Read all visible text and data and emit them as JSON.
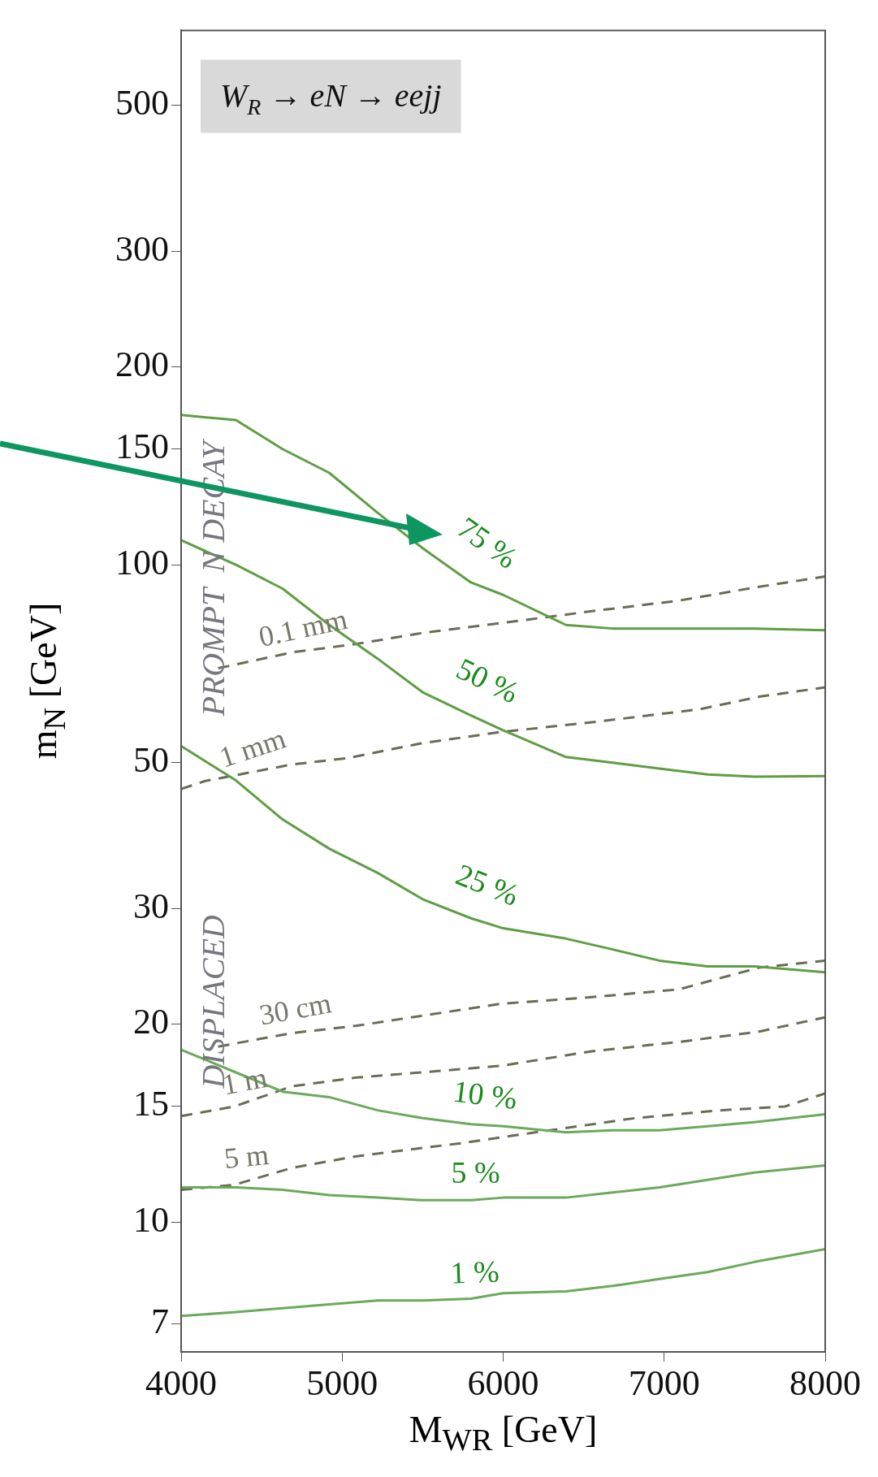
{
  "chart_data": {
    "type": "line",
    "xlabel": "M$_{WR}$  [GeV]",
    "ylabel": "m$_{N}$  [GeV]",
    "log": "y",
    "xlim": [
      4000,
      8000
    ],
    "xticks": [
      4000,
      5000,
      6000,
      7000,
      8000
    ],
    "ylim": [
      6.35,
      650
    ],
    "yticks": [
      7,
      10,
      15,
      20,
      30,
      50,
      100,
      150,
      200,
      300,
      500
    ],
    "grid": false,
    "legend": false,
    "annotations": [
      "W$_{R}$ → eN → eejj",
      "PROMPT  N DECAY",
      "DISPLACED"
    ],
    "series": [
      {
        "name": "75 %",
        "color": "#5e9e44",
        "x": [
          4000,
          4340,
          4630,
          4920,
          5220,
          5500,
          5800,
          6000,
          6390,
          6680,
          6970,
          7270,
          7560,
          8000
        ],
        "values": [
          169,
          166,
          150,
          138,
          120,
          106,
          94,
          90,
          81,
          80,
          80,
          80,
          80,
          79.5
        ]
      },
      {
        "name": "50 %",
        "color": "#5e9e44",
        "x": [
          4000,
          4340,
          4630,
          4920,
          5220,
          5500,
          5800,
          6000,
          6390,
          6680,
          6970,
          7270,
          7560,
          8000
        ],
        "values": [
          109,
          100,
          92,
          81,
          72,
          64,
          59,
          56,
          51,
          50,
          49,
          48,
          47.6,
          47.7
        ]
      },
      {
        "name": "25 %",
        "color": "#5e9e44",
        "x": [
          4000,
          4340,
          4630,
          4920,
          5220,
          5500,
          5800,
          6000,
          6390,
          6680,
          6970,
          7270,
          7560,
          8000
        ],
        "values": [
          53,
          47,
          41,
          37,
          34,
          31,
          29,
          28,
          27,
          26,
          25,
          24.5,
          24.5,
          24
        ]
      },
      {
        "name": "10 %",
        "color": "#6aaa5a",
        "x": [
          4000,
          4340,
          4630,
          4920,
          5220,
          5500,
          5800,
          6000,
          6390,
          6680,
          6970,
          7270,
          7560,
          8000
        ],
        "values": [
          18.3,
          16.9,
          15.8,
          15.5,
          14.8,
          14.4,
          14.1,
          14.0,
          13.7,
          13.8,
          13.8,
          14.0,
          14.2,
          14.6
        ]
      },
      {
        "name": "5 %",
        "color": "#6aaa5a",
        "x": [
          4000,
          4340,
          4630,
          4920,
          5220,
          5500,
          5800,
          6000,
          6390,
          6680,
          6970,
          7270,
          7560,
          8000
        ],
        "values": [
          11.3,
          11.3,
          11.2,
          11.0,
          10.9,
          10.8,
          10.8,
          10.9,
          10.9,
          11.1,
          11.3,
          11.6,
          11.9,
          12.2
        ]
      },
      {
        "name": "1 %",
        "color": "#6aaa5a",
        "x": [
          4000,
          4340,
          4630,
          4920,
          5220,
          5500,
          5800,
          6000,
          6390,
          6680,
          6970,
          7270,
          7560,
          8000
        ],
        "values": [
          7.2,
          7.3,
          7.4,
          7.5,
          7.6,
          7.6,
          7.65,
          7.8,
          7.85,
          8.0,
          8.2,
          8.4,
          8.7,
          9.1
        ]
      },
      {
        "name": "0.1 mm",
        "line_style": "dashed",
        "color": "#6b6b58",
        "x": [
          4230,
          4690,
          5090,
          5490,
          6000,
          6550,
          7090,
          7590,
          8000
        ],
        "values": [
          69.6,
          73.6,
          75.8,
          78.7,
          81.6,
          85,
          88.2,
          92.6,
          96
        ]
      },
      {
        "name": "1 mm",
        "line_style": "dashed",
        "color": "#6b6b58",
        "x": [
          4000,
          4150,
          4690,
          5030,
          5490,
          5990,
          6550,
          7220,
          7590,
          8000
        ],
        "values": [
          45.6,
          46.9,
          49.7,
          50.8,
          53.5,
          55.7,
          57.6,
          60.3,
          63,
          65.1
        ]
      },
      {
        "name": "30 cm",
        "line_style": "dashed",
        "color": "#6b6b58",
        "x": [
          4230,
          4690,
          5090,
          5490,
          5990,
          6550,
          7090,
          7590,
          8000
        ],
        "values": [
          18.5,
          19.4,
          19.9,
          20.6,
          21.5,
          22.0,
          22.6,
          24.4,
          25.0
        ]
      },
      {
        "name": "1 m",
        "line_style": "dashed",
        "color": "#6b6b58",
        "x": [
          4000,
          4330,
          4690,
          5090,
          5490,
          5990,
          6550,
          7090,
          7590,
          8000
        ],
        "values": [
          14.5,
          15.0,
          16.1,
          16.6,
          16.9,
          17.3,
          18.2,
          18.8,
          19.5,
          20.5
        ]
      },
      {
        "name": "5 m",
        "line_style": "dashed",
        "color": "#6b6b58",
        "x": [
          4000,
          4330,
          4690,
          5090,
          5750,
          6290,
          6820,
          7350,
          7750,
          8000
        ],
        "values": [
          11.2,
          11.4,
          12.1,
          12.6,
          13.2,
          13.8,
          14.4,
          14.8,
          15.0,
          15.7
        ]
      }
    ]
  }
}
